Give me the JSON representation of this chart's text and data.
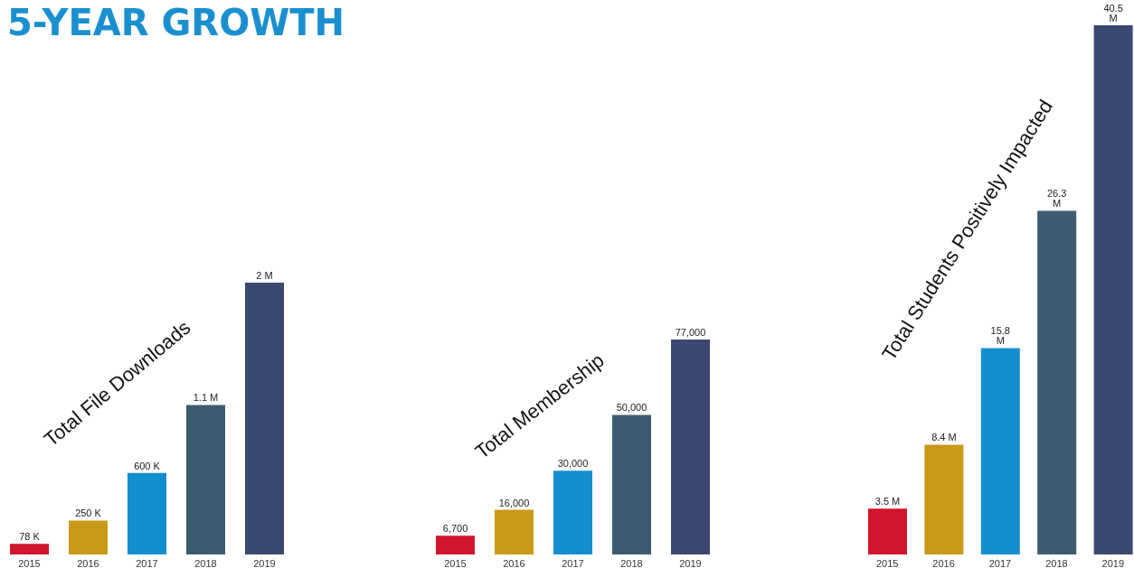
{
  "chart_data": [
    {
      "type": "other",
      "title": "5-YEAR GROWTH"
    },
    {
      "type": "bar",
      "title": "Total File Downloads",
      "categories": [
        "2015",
        "2016",
        "2017",
        "2018",
        "2019"
      ],
      "values": [
        78000,
        250000,
        600000,
        1100000,
        2000000
      ],
      "value_labels": [
        "78 K",
        "250 K",
        "600 K",
        "1.1 M",
        "2 M"
      ],
      "colors": [
        "#d0152d",
        "#c99a16",
        "#138fcf",
        "#3d5b70",
        "#3b4872"
      ]
    },
    {
      "type": "bar",
      "title": "Total Membership",
      "categories": [
        "2015",
        "2016",
        "2017",
        "2018",
        "2019"
      ],
      "values": [
        6700,
        16000,
        30000,
        50000,
        77000
      ],
      "value_labels": [
        "6,700",
        "16,000",
        "30,000",
        "50,000",
        "77,000"
      ],
      "colors": [
        "#d0152d",
        "#c99a16",
        "#138fcf",
        "#3d5b70",
        "#3b4872"
      ]
    },
    {
      "type": "bar",
      "title": "Total Students Positively Impacted",
      "categories": [
        "2015",
        "2016",
        "2017",
        "2018",
        "2019"
      ],
      "values": [
        3500000,
        8400000,
        15800000,
        26300000,
        40500000
      ],
      "value_labels": [
        "3.5 M",
        "8.4 M",
        "15.8 M",
        "26.3 M",
        "40.5 M"
      ],
      "colors": [
        "#d0152d",
        "#c99a16",
        "#138fcf",
        "#3d5b70",
        "#3b4872"
      ]
    }
  ]
}
